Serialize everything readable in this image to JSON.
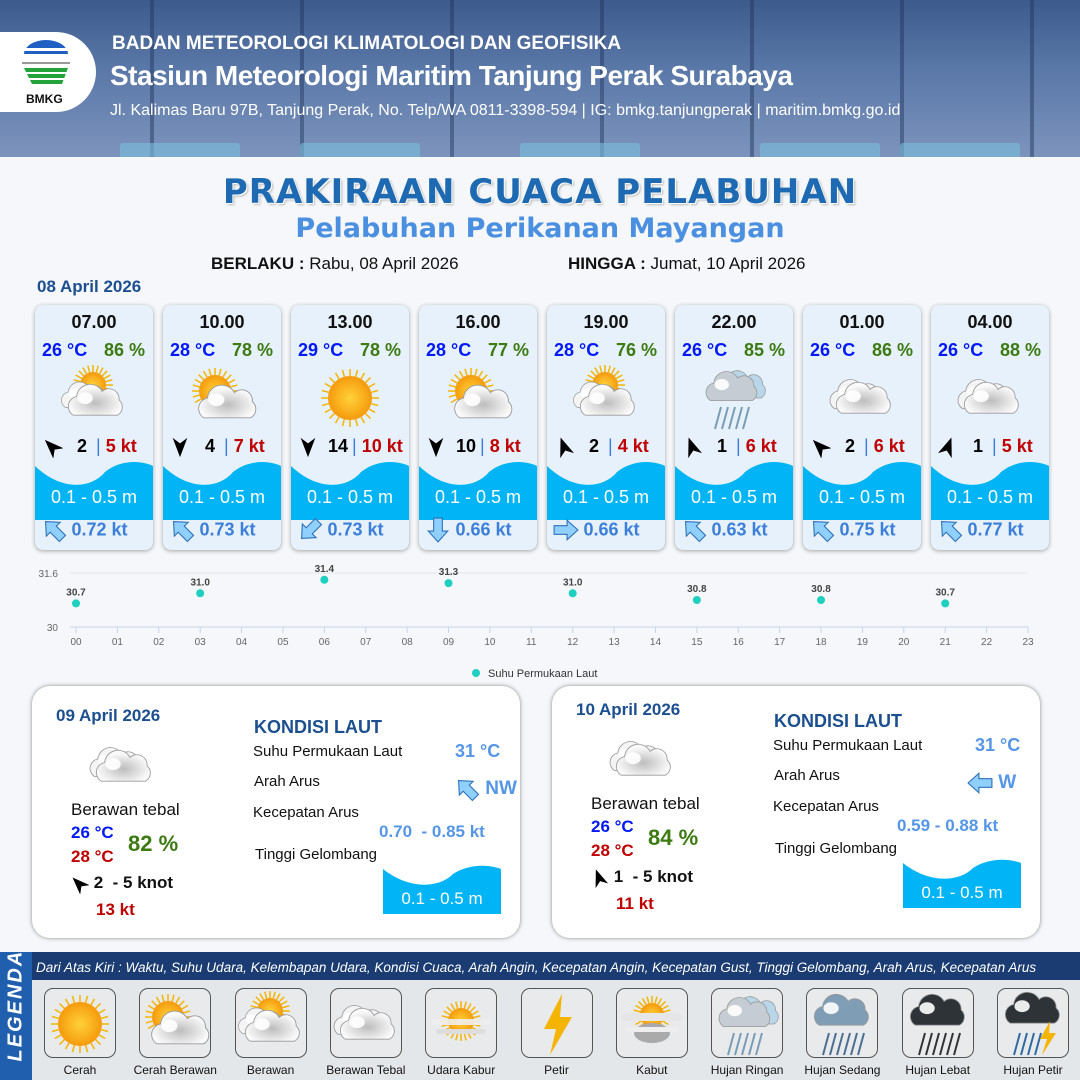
{
  "header": {
    "org": "BADAN METEOROLOGI KLIMATOLOGI DAN GEOFISIKA",
    "station": "Stasiun Meteorologi Maritim Tanjung Perak Surabaya",
    "address": "Jl. Kalimas Baru 97B, Tanjung Perak, No. Telp/WA 0811-3398-594 | IG: bmkg.tanjungperak | maritim.bmkg.go.id",
    "logo_text": "BMKG"
  },
  "title": "PRAKIRAAN CUACA PELABUHAN",
  "subtitle": "Pelabuhan Perikanan Mayangan",
  "validity": {
    "from_label": "BERLAKU :",
    "from": "Rabu, 08 April 2026",
    "to_label": "HINGGA :",
    "to": "Jumat, 10 April 2026"
  },
  "colors": {
    "title": "#1d6ab3",
    "temp": "#0019f5",
    "humidity": "#3c7a12",
    "gust": "#c00000",
    "wave": "#00b4f5",
    "current": "#3b7fd8",
    "sst_point": "#1fcfc0"
  },
  "day1": {
    "date": "08 April 2026",
    "forecasts": [
      {
        "time": "07.00",
        "temp": "26 °C",
        "humidity": "86 %",
        "weather": "berawan",
        "wind_dir_deg": 315,
        "wind": "2",
        "gust": "5 kt",
        "wave": "0.1 - 0.5 m",
        "current_dir_deg": 315,
        "current": "0.72 kt"
      },
      {
        "time": "10.00",
        "temp": "28 °C",
        "humidity": "78 %",
        "weather": "cerah-berawan",
        "wind_dir_deg": 180,
        "wind": "4",
        "gust": "7 kt",
        "wave": "0.1 - 0.5 m",
        "current_dir_deg": 315,
        "current": "0.73 kt"
      },
      {
        "time": "13.00",
        "temp": "29 °C",
        "humidity": "78 %",
        "weather": "cerah",
        "wind_dir_deg": 180,
        "wind": "14",
        "gust": "10 kt",
        "wave": "0.1 - 0.5 m",
        "current_dir_deg": 225,
        "current": "0.73 kt"
      },
      {
        "time": "16.00",
        "temp": "28 °C",
        "humidity": "77 %",
        "weather": "cerah-berawan",
        "wind_dir_deg": 180,
        "wind": "10",
        "gust": "8 kt",
        "wave": "0.1 - 0.5 m",
        "current_dir_deg": 180,
        "current": "0.66 kt"
      },
      {
        "time": "19.00",
        "temp": "28 °C",
        "humidity": "76 %",
        "weather": "berawan",
        "wind_dir_deg": 340,
        "wind": "2",
        "gust": "4 kt",
        "wave": "0.1 - 0.5 m",
        "current_dir_deg": 90,
        "current": "0.66 kt"
      },
      {
        "time": "22.00",
        "temp": "26 °C",
        "humidity": "85 %",
        "weather": "hujan-ringan",
        "wind_dir_deg": 340,
        "wind": "1",
        "gust": "6 kt",
        "wave": "0.1 - 0.5 m",
        "current_dir_deg": 315,
        "current": "0.63 kt"
      },
      {
        "time": "01.00",
        "temp": "26 °C",
        "humidity": "86 %",
        "weather": "berawan-tebal",
        "wind_dir_deg": 315,
        "wind": "2",
        "gust": "6 kt",
        "wave": "0.1 - 0.5 m",
        "current_dir_deg": 315,
        "current": "0.75 kt"
      },
      {
        "time": "04.00",
        "temp": "26 °C",
        "humidity": "88 %",
        "weather": "berawan-tebal",
        "wind_dir_deg": 20,
        "wind": "1",
        "gust": "5 kt",
        "wave": "0.1 - 0.5 m",
        "current_dir_deg": 315,
        "current": "0.77 kt"
      }
    ]
  },
  "chart_data": {
    "type": "scatter",
    "x_ticks": [
      "00",
      "01",
      "02",
      "03",
      "04",
      "05",
      "06",
      "07",
      "08",
      "09",
      "10",
      "11",
      "12",
      "13",
      "14",
      "15",
      "16",
      "17",
      "18",
      "19",
      "20",
      "21",
      "22",
      "23"
    ],
    "y_ticks": [
      "30",
      "31.6"
    ],
    "ylim": [
      30,
      31.6
    ],
    "xlim": [
      0,
      23
    ],
    "series": [
      {
        "name": "Suhu Permukaan Laut",
        "x": [
          0,
          3,
          6,
          9,
          12,
          15,
          18,
          21
        ],
        "values": [
          30.7,
          31.0,
          31.4,
          31.3,
          31.0,
          30.8,
          30.8,
          30.7
        ],
        "labels": [
          "30.7",
          "31.0",
          "31.4",
          "31.3",
          "31.0",
          "30.8",
          "30.8",
          "30.7"
        ]
      }
    ],
    "legend": "bottom-center",
    "grid": false
  },
  "days": [
    {
      "date": "09 April 2026",
      "weather": "berawan-tebal",
      "condition": "Berawan tebal",
      "temp_min": "26 °C",
      "temp_max": "28 °C",
      "humidity": "82 %",
      "wind_dir_deg": 315,
      "wind": "2  - 5 knot",
      "gust": "13 kt",
      "sea": {
        "title": "KONDISI LAUT",
        "sst_label": "Suhu Permukaan Laut",
        "sst": "31 °C",
        "dir_label": "Arah Arus",
        "dir": "NW",
        "dir_deg": 315,
        "speed_label": "Kecepatan Arus",
        "speed": "0.70  - 0.85 kt",
        "wave_label": "Tinggi Gelombang",
        "wave": "0.1 - 0.5 m"
      }
    },
    {
      "date": "10 April 2026",
      "weather": "berawan-tebal",
      "condition": "Berawan tebal",
      "temp_min": "26 °C",
      "temp_max": "28 °C",
      "humidity": "84 %",
      "wind_dir_deg": 340,
      "wind": "1  - 5 knot",
      "gust": "11 kt",
      "sea": {
        "title": "KONDISI LAUT",
        "sst_label": "Suhu Permukaan Laut",
        "sst": "31 °C",
        "dir_label": "Arah Arus",
        "dir": "W",
        "dir_deg": 270,
        "speed_label": "Kecepatan Arus",
        "speed": "0.59 - 0.88 kt",
        "wave_label": "Tinggi Gelombang",
        "wave": "0.1 - 0.5 m"
      }
    }
  ],
  "legend": {
    "title": "LEGENDA",
    "description": "Dari Atas Kiri : Waktu, Suhu Udara, Kelembapan Udara, Kondisi Cuaca, Arah Angin, Kecepatan Angin, Kecepatan Gust, Tinggi Gelombang, Arah Arus, Kecepatan Arus",
    "items": [
      {
        "icon": "cerah",
        "label": "Cerah"
      },
      {
        "icon": "cerah-berawan",
        "label": "Cerah Berawan"
      },
      {
        "icon": "berawan",
        "label": "Berawan"
      },
      {
        "icon": "berawan-tebal",
        "label": "Berawan Tebal"
      },
      {
        "icon": "udara-kabur",
        "label": "Udara Kabur"
      },
      {
        "icon": "petir",
        "label": "Petir"
      },
      {
        "icon": "kabut",
        "label": "Kabut"
      },
      {
        "icon": "hujan-ringan",
        "label": "Hujan Ringan"
      },
      {
        "icon": "hujan-sedang",
        "label": "Hujan Sedang"
      },
      {
        "icon": "hujan-lebat",
        "label": "Hujan Lebat"
      },
      {
        "icon": "hujan-petir",
        "label": "Hujan Petir"
      }
    ]
  }
}
